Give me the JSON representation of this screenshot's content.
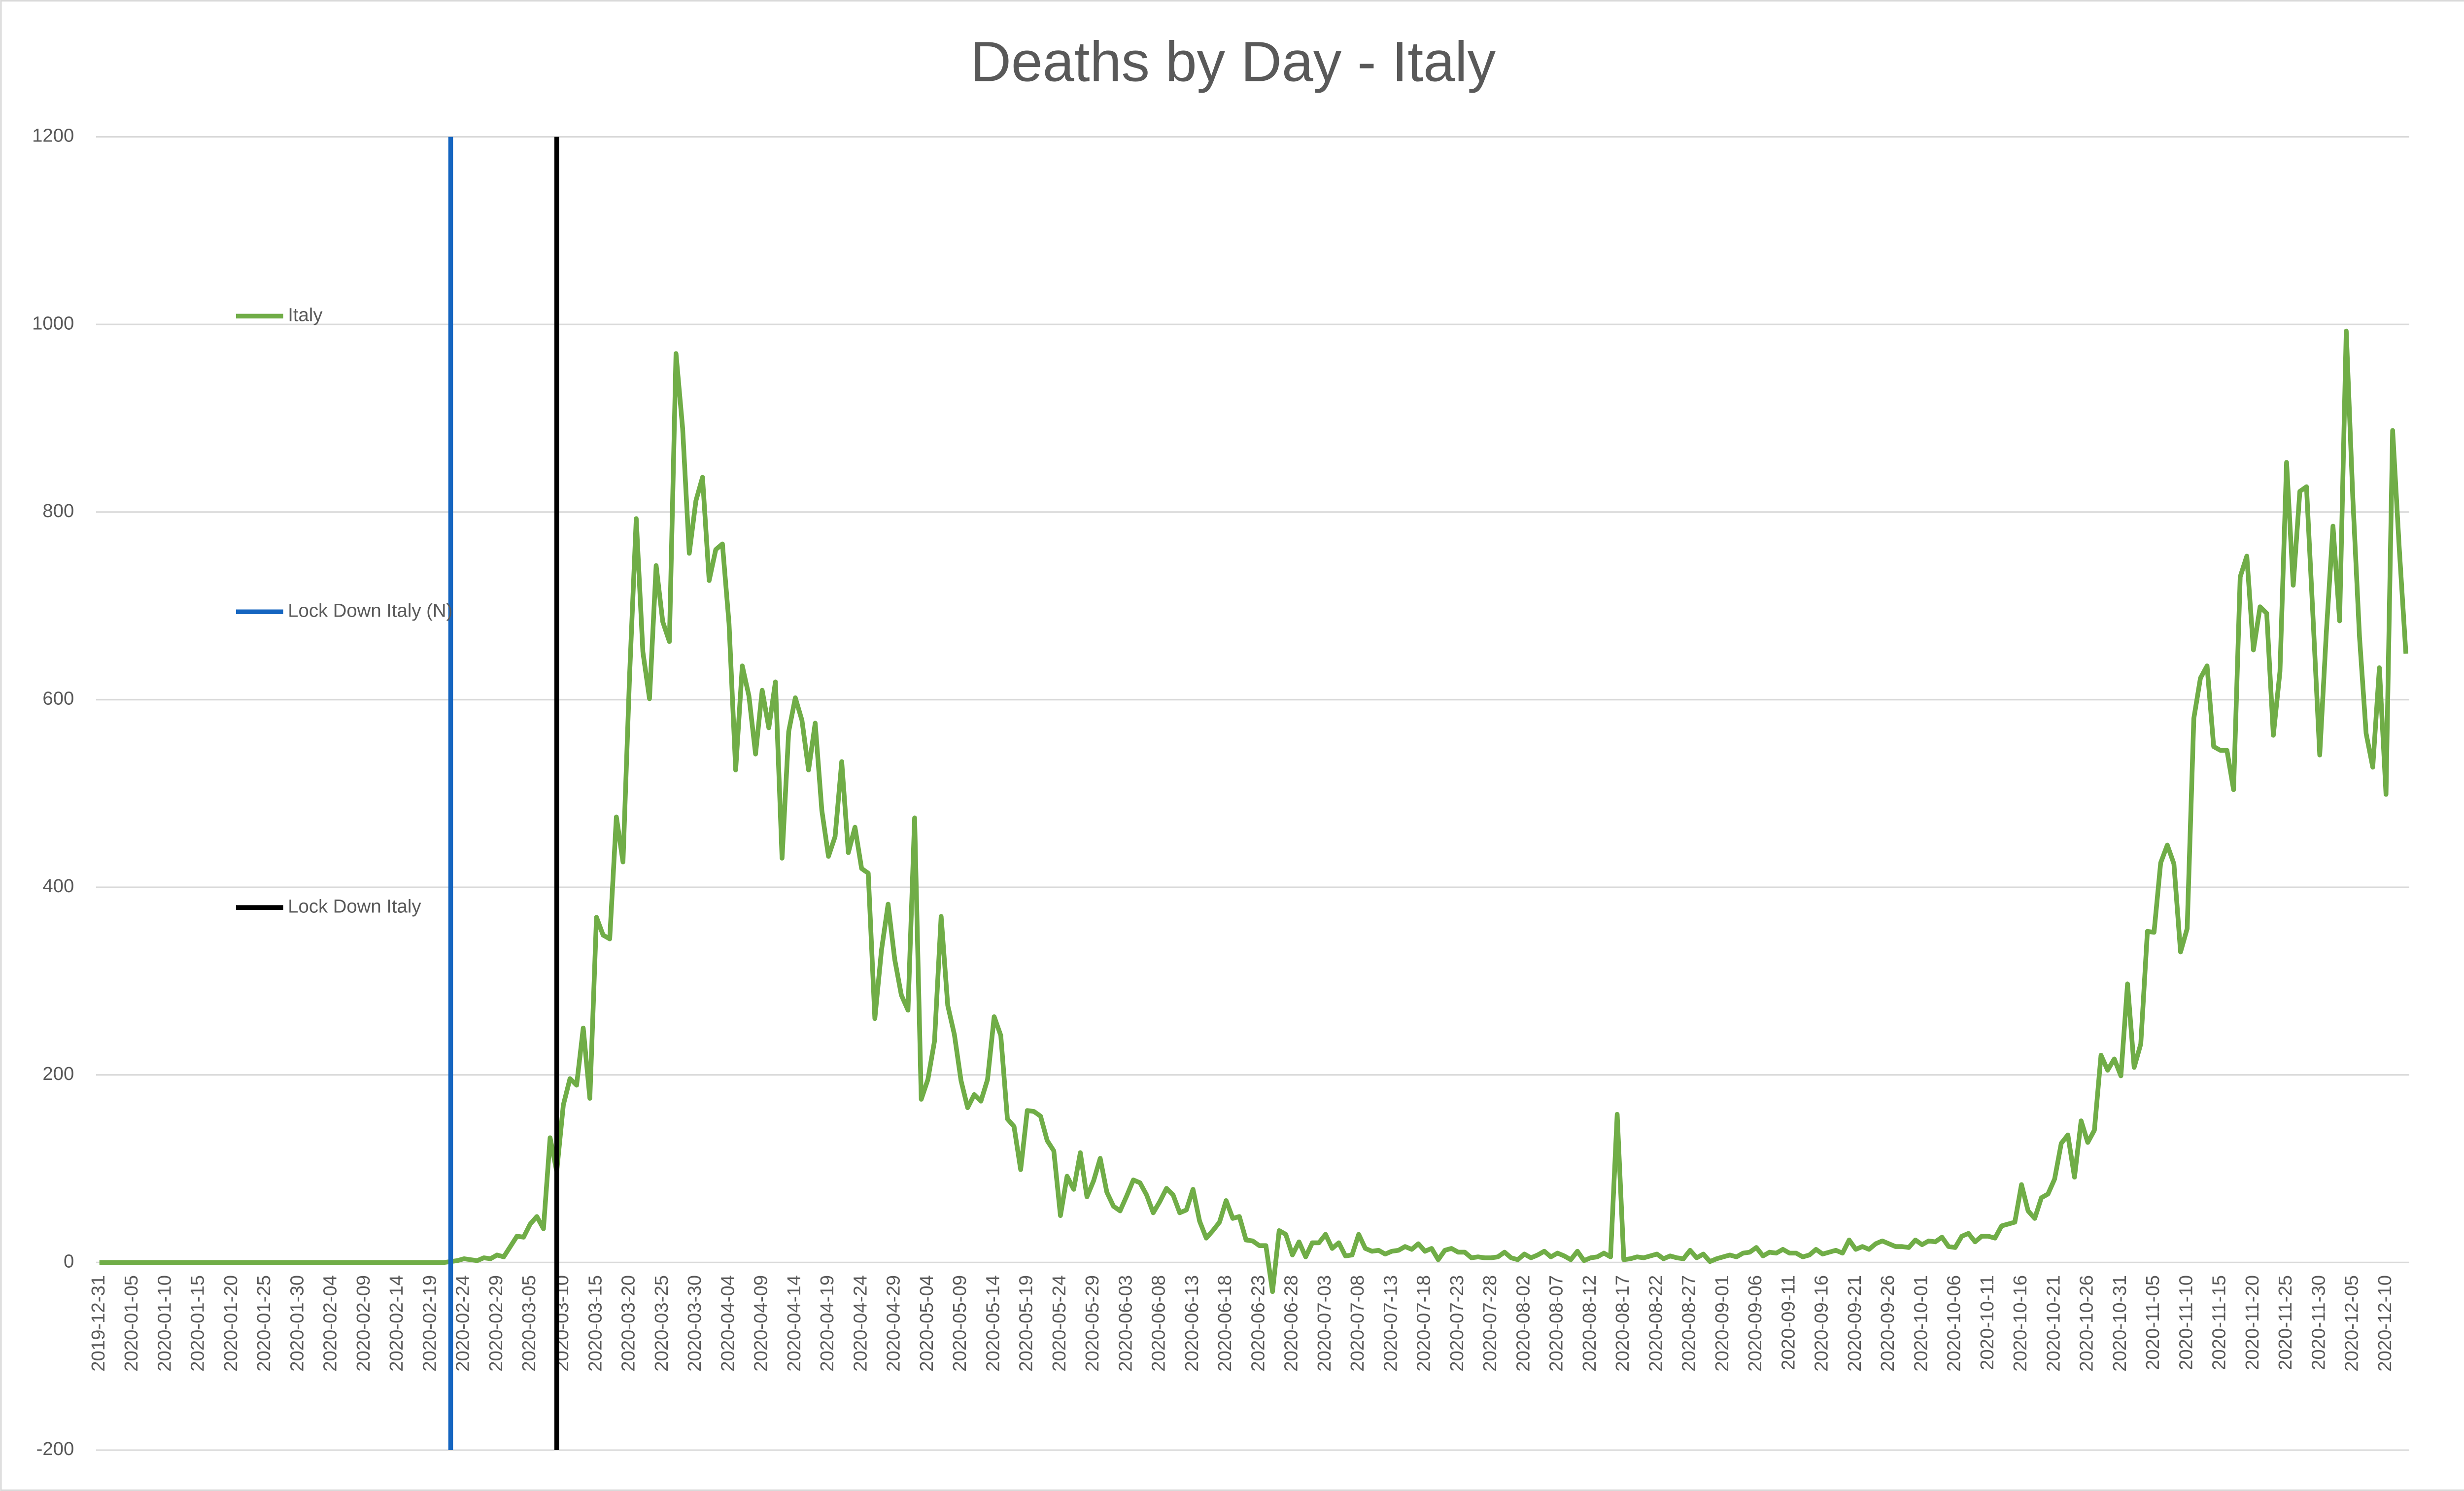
{
  "chart_data": {
    "type": "line",
    "title": "Deaths by Day - Italy",
    "categories": [
      "2019-12-31",
      null,
      null,
      null,
      null,
      "2020-01-05",
      null,
      null,
      null,
      null,
      "2020-01-10",
      null,
      null,
      null,
      null,
      "2020-01-15",
      null,
      null,
      null,
      null,
      "2020-01-20",
      null,
      null,
      null,
      null,
      "2020-01-25",
      null,
      null,
      null,
      null,
      "2020-01-30",
      null,
      null,
      null,
      null,
      "2020-02-04",
      null,
      null,
      null,
      null,
      "2020-02-09",
      null,
      null,
      null,
      null,
      "2020-02-14",
      null,
      null,
      null,
      null,
      "2020-02-19",
      null,
      null,
      null,
      null,
      "2020-02-24",
      null,
      null,
      null,
      null,
      "2020-02-29",
      null,
      null,
      null,
      null,
      "2020-03-05",
      null,
      null,
      null,
      null,
      "2020-03-10",
      null,
      null,
      null,
      null,
      "2020-03-15",
      null,
      null,
      null,
      null,
      "2020-03-20",
      null,
      null,
      null,
      null,
      "2020-03-25",
      null,
      null,
      null,
      null,
      "2020-03-30",
      null,
      null,
      null,
      null,
      "2020-04-04",
      null,
      null,
      null,
      null,
      "2020-04-09",
      null,
      null,
      null,
      null,
      "2020-04-14",
      null,
      null,
      null,
      null,
      "2020-04-19",
      null,
      null,
      null,
      null,
      "2020-04-24",
      null,
      null,
      null,
      null,
      "2020-04-29",
      null,
      null,
      null,
      null,
      "2020-05-04",
      null,
      null,
      null,
      null,
      "2020-05-09",
      null,
      null,
      null,
      null,
      "2020-05-14",
      null,
      null,
      null,
      null,
      "2020-05-19",
      null,
      null,
      null,
      null,
      "2020-05-24",
      null,
      null,
      null,
      null,
      "2020-05-29",
      null,
      null,
      null,
      null,
      "2020-06-03",
      null,
      null,
      null,
      null,
      "2020-06-08",
      null,
      null,
      null,
      null,
      "2020-06-13",
      null,
      null,
      null,
      null,
      "2020-06-18",
      null,
      null,
      null,
      null,
      "2020-06-23",
      null,
      null,
      null,
      null,
      "2020-06-28",
      null,
      null,
      null,
      null,
      "2020-07-03",
      null,
      null,
      null,
      null,
      "2020-07-08",
      null,
      null,
      null,
      null,
      "2020-07-13",
      null,
      null,
      null,
      null,
      "2020-07-18",
      null,
      null,
      null,
      null,
      "2020-07-23",
      null,
      null,
      null,
      null,
      "2020-07-28",
      null,
      null,
      null,
      null,
      "2020-08-02",
      null,
      null,
      null,
      null,
      "2020-08-07",
      null,
      null,
      null,
      null,
      "2020-08-12",
      null,
      null,
      null,
      null,
      "2020-08-17",
      null,
      null,
      null,
      null,
      "2020-08-22",
      null,
      null,
      null,
      null,
      "2020-08-27",
      null,
      null,
      null,
      null,
      "2020-09-01",
      null,
      null,
      null,
      null,
      "2020-09-06",
      null,
      null,
      null,
      null,
      "2020-09-11",
      null,
      null,
      null,
      null,
      "2020-09-16",
      null,
      null,
      null,
      null,
      "2020-09-21",
      null,
      null,
      null,
      null,
      "2020-09-26",
      null,
      null,
      null,
      null,
      "2020-10-01",
      null,
      null,
      null,
      null,
      "2020-10-06",
      null,
      null,
      null,
      null,
      "2020-10-11",
      null,
      null,
      null,
      null,
      "2020-10-16",
      null,
      null,
      null,
      null,
      "2020-10-21",
      null,
      null,
      null,
      null,
      "2020-10-26",
      null,
      null,
      null,
      null,
      "2020-10-31",
      null,
      null,
      null,
      null,
      "2020-11-05",
      null,
      null,
      null,
      null,
      "2020-11-10",
      null,
      null,
      null,
      null,
      "2020-11-15",
      null,
      null,
      null,
      null,
      "2020-11-20",
      null,
      null,
      null,
      null,
      "2020-11-25",
      null,
      null,
      null,
      null,
      "2020-11-30",
      null,
      null,
      null,
      null,
      "2020-12-05",
      null,
      null,
      null,
      null,
      "2020-12-10",
      null,
      null,
      null
    ],
    "series": [
      {
        "name": "Italy",
        "color": "#70ad47",
        "values": [
          0,
          0,
          0,
          0,
          0,
          0,
          0,
          0,
          0,
          0,
          0,
          0,
          0,
          0,
          0,
          0,
          0,
          0,
          0,
          0,
          0,
          0,
          0,
          0,
          0,
          0,
          0,
          0,
          0,
          0,
          0,
          0,
          0,
          0,
          0,
          0,
          0,
          0,
          0,
          0,
          0,
          0,
          0,
          0,
          0,
          0,
          0,
          0,
          0,
          0,
          0,
          0,
          0,
          1,
          2,
          4,
          3,
          2,
          5,
          4,
          8,
          6,
          17,
          28,
          27,
          41,
          49,
          36,
          133,
          97,
          168,
          196,
          189,
          250,
          175,
          368,
          349,
          345,
          475,
          427,
          627,
          793,
          651,
          601,
          743,
          683,
          662,
          969,
          889,
          756,
          812,
          837,
          727,
          760,
          766,
          681,
          525,
          636,
          604,
          542,
          610,
          570,
          619,
          431,
          566,
          602,
          578,
          525,
          575,
          482,
          433,
          454,
          534,
          437,
          464,
          420,
          415,
          260,
          333,
          382,
          323,
          285,
          269,
          474,
          174,
          195,
          236,
          369,
          274,
          243,
          194,
          165,
          179,
          172,
          195,
          262,
          242,
          153,
          145,
          99,
          162,
          161,
          156,
          130,
          119,
          50,
          92,
          78,
          117,
          70,
          87,
          111,
          75,
          60,
          55,
          71,
          88,
          85,
          72,
          53,
          65,
          79,
          72,
          53,
          56,
          78,
          44,
          26,
          34,
          43,
          66,
          47,
          49,
          24,
          23,
          18,
          18,
          -31,
          34,
          30,
          8,
          22,
          6,
          21,
          21,
          30,
          15,
          21,
          7,
          8,
          30,
          15,
          12,
          13,
          9,
          12,
          13,
          17,
          14,
          20,
          12,
          15,
          3,
          13,
          15,
          11,
          11,
          5,
          6,
          5,
          5,
          6,
          11,
          5,
          3,
          9,
          5,
          8,
          12,
          6,
          10,
          7,
          3,
          12,
          2,
          5,
          6,
          10,
          6,
          158,
          3,
          4,
          6,
          5,
          7,
          9,
          4,
          7,
          5,
          4,
          13,
          5,
          9,
          1,
          4,
          6,
          8,
          6,
          10,
          11,
          16,
          7,
          11,
          10,
          14,
          10,
          10,
          6,
          8,
          14,
          9,
          11,
          13,
          10,
          24,
          14,
          17,
          14,
          20,
          23,
          20,
          17,
          17,
          16,
          24,
          19,
          23,
          22,
          27,
          17,
          16,
          28,
          31,
          22,
          28,
          28,
          26,
          39,
          41,
          43,
          83,
          55,
          47,
          69,
          73,
          89,
          127,
          136,
          91,
          151,
          128,
          141,
          221,
          205,
          217,
          199,
          297,
          208,
          233,
          353,
          352,
          426,
          445,
          425,
          331,
          356,
          580,
          623,
          636,
          550,
          546,
          546,
          504,
          731,
          753,
          653,
          699,
          692,
          562,
          630,
          853,
          722,
          822,
          827,
          686,
          541,
          672,
          785,
          684,
          993,
          814,
          667,
          564,
          528,
          634,
          499,
          887,
          761,
          649
        ]
      },
      {
        "name": "Lock Down Italy (N)",
        "color": "#1565c0",
        "at": 53
      },
      {
        "name": "Lock Down Italy",
        "color": "#000000",
        "at": 69
      }
    ],
    "ylim": [
      -200,
      1200
    ],
    "yticks": [
      -200,
      0,
      200,
      400,
      600,
      800,
      1000,
      1200
    ],
    "grid": true
  }
}
